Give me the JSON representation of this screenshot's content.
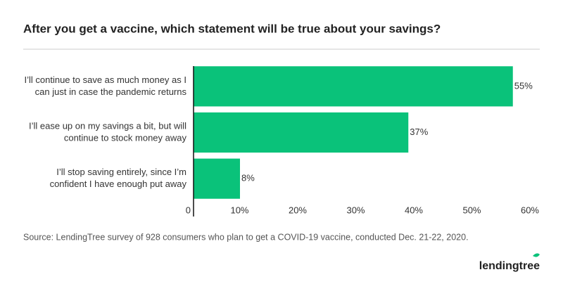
{
  "chart_data": {
    "type": "bar",
    "orientation": "horizontal",
    "title": "After you get a vaccine, which statement will be true about your savings?",
    "categories": [
      [
        "I’ll continue to save as much money as I",
        "can just in case the pandemic returns"
      ],
      [
        "I’ll ease up on my savings a bit, but will",
        "continue to stock money away"
      ],
      [
        "I’ll stop saving entirely, since I’m",
        "confident I have enough put away"
      ]
    ],
    "values": [
      55,
      37,
      8
    ],
    "value_labels": [
      "55%",
      "37%",
      "8%"
    ],
    "color": "#0ac27a",
    "xlim": [
      0,
      60
    ],
    "xticks": [
      0,
      {
        "value": 10,
        "label": "10%"
      },
      {
        "value": 20,
        "label": "20%"
      },
      {
        "value": 30,
        "label": "30%"
      },
      {
        "value": 40,
        "label": "40%"
      },
      {
        "value": 50,
        "label": "50%"
      },
      {
        "value": 60,
        "label": "60%"
      }
    ],
    "source": "Source: LendingTree survey of 928 consumers who plan to get a COVID-19 vaccine, conducted Dec. 21-22, 2020.",
    "brand": "lendingtree"
  }
}
